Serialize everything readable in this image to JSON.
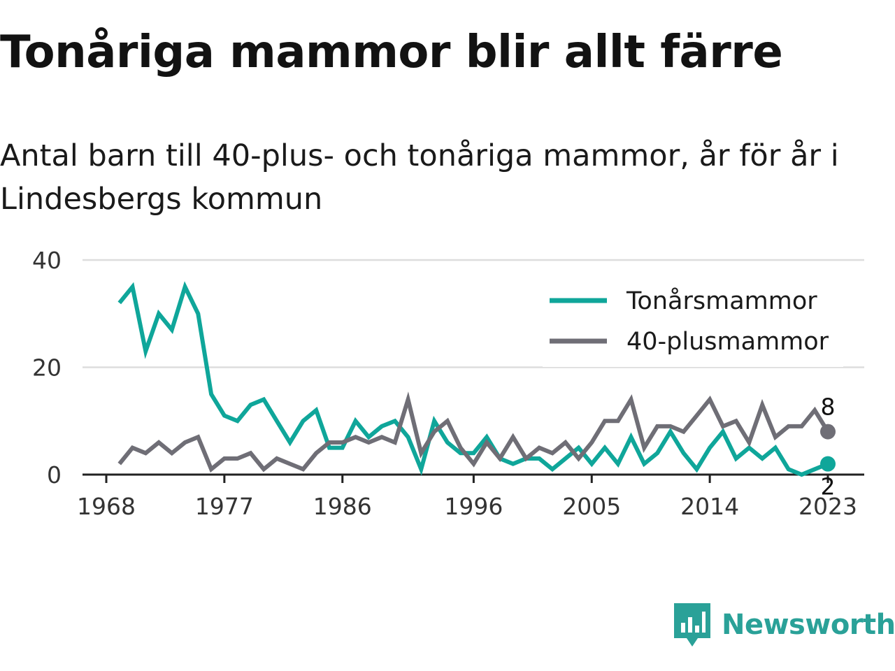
{
  "title": "Tonåriga mammor blir allt färre",
  "subtitle": "Antal barn till 40-plus- och tonåriga mammor, år för år i Lindesbergs kommun",
  "brand": "Newsworthy",
  "colors": {
    "teen": "#0fa69a",
    "forty": "#6f6e76",
    "grid": "#dddddd",
    "axis": "#222222"
  },
  "chart_data": {
    "type": "line",
    "x": [
      1969,
      1970,
      1971,
      1972,
      1973,
      1974,
      1975,
      1976,
      1977,
      1978,
      1979,
      1980,
      1981,
      1982,
      1983,
      1984,
      1985,
      1986,
      1987,
      1988,
      1989,
      1990,
      1991,
      1992,
      1993,
      1994,
      1995,
      1996,
      1997,
      1998,
      1999,
      2000,
      2001,
      2002,
      2003,
      2004,
      2005,
      2006,
      2007,
      2008,
      2009,
      2010,
      2011,
      2012,
      2013,
      2014,
      2015,
      2016,
      2017,
      2018,
      2019,
      2020,
      2021,
      2022,
      2023
    ],
    "series": [
      {
        "name": "Tonårsmammor",
        "color": "#0fa69a",
        "values": [
          32,
          35,
          23,
          30,
          27,
          35,
          30,
          15,
          11,
          10,
          13,
          14,
          10,
          6,
          10,
          12,
          5,
          5,
          10,
          7,
          9,
          10,
          7,
          1,
          10,
          6,
          4,
          4,
          7,
          3,
          2,
          3,
          3,
          1,
          3,
          5,
          2,
          5,
          2,
          7,
          2,
          4,
          8,
          4,
          1,
          5,
          8,
          3,
          5,
          3,
          5,
          1,
          0,
          1,
          2
        ]
      },
      {
        "name": "40-plusmammor",
        "color": "#6f6e76",
        "values": [
          2,
          5,
          4,
          6,
          4,
          6,
          7,
          1,
          3,
          3,
          4,
          1,
          3,
          2,
          1,
          4,
          6,
          6,
          7,
          6,
          7,
          6,
          14,
          4,
          8,
          10,
          5,
          2,
          6,
          3,
          7,
          3,
          5,
          4,
          6,
          3,
          6,
          10,
          10,
          14,
          5,
          9,
          9,
          8,
          11,
          14,
          9,
          10,
          6,
          13,
          7,
          9,
          9,
          12,
          8
        ]
      }
    ],
    "x_ticks": [
      1968,
      1977,
      1986,
      1996,
      2005,
      2014,
      2023
    ],
    "y_ticks": [
      0,
      20,
      40
    ],
    "xlim": [
      1968,
      2023
    ],
    "ylim": [
      0,
      40
    ],
    "end_labels": {
      "Tonårsmammor": "2",
      "40-plusmammor": "8"
    },
    "legend": "top-right",
    "grid": "horizontal"
  }
}
